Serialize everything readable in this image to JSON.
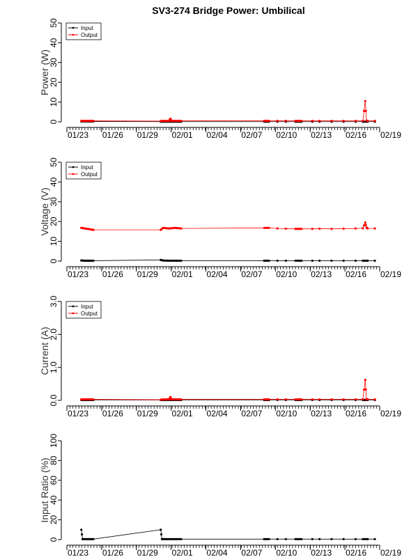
{
  "title": "SV3-274 Bridge Power: Umbilical",
  "colors": {
    "input": "#000000",
    "output": "#ff0000"
  },
  "x_ticks": [
    "01/23",
    "01/26",
    "01/29",
    "02/01",
    "02/04",
    "02/07",
    "02/10",
    "02/13",
    "02/16",
    "02/19"
  ],
  "chart_data": [
    {
      "type": "line",
      "ylabel": "Power (W)",
      "ylim": [
        0,
        50
      ],
      "yticks": [
        0,
        10,
        20,
        30,
        40,
        50
      ],
      "xlim": [
        23.0,
        49.0
      ],
      "legend": {
        "placement": "top-left",
        "entries": [
          "Input",
          "Output"
        ]
      },
      "series": [
        {
          "name": "Input",
          "x": [
            24.2,
            24.5,
            24.8,
            25.0,
            25.2,
            30.8,
            31.0,
            31.5,
            32.0,
            32.5,
            39.4,
            39.8,
            40.5,
            41.2,
            42.0,
            42.5,
            43.4,
            44.0,
            45.0,
            46.0,
            47.0,
            47.6,
            48.0,
            48.6
          ],
          "y": [
            0.2,
            0.2,
            0.2,
            0.2,
            0.2,
            0.1,
            0.1,
            0.1,
            0.1,
            0.1,
            0.1,
            0.1,
            0.1,
            0.1,
            0.1,
            0.1,
            0.1,
            0.1,
            0.1,
            0.1,
            0.1,
            0.1,
            0.1,
            0.1
          ]
        },
        {
          "name": "Output",
          "x": [
            24.2,
            24.5,
            24.8,
            25.0,
            25.2,
            30.8,
            31.0,
            31.5,
            31.6,
            31.7,
            32.0,
            32.5,
            39.4,
            39.8,
            40.5,
            41.2,
            42.0,
            42.5,
            43.4,
            44.0,
            45.0,
            46.0,
            47.0,
            47.6,
            47.8,
            47.9,
            48.0,
            48.6
          ],
          "y": [
            0.5,
            0.5,
            0.5,
            0.5,
            0.5,
            0.4,
            0.5,
            0.5,
            1.6,
            0.5,
            0.5,
            0.5,
            0.5,
            0.5,
            0.5,
            0.5,
            0.5,
            0.5,
            0.5,
            0.5,
            0.5,
            0.5,
            0.5,
            0.5,
            10.5,
            0.6,
            0.5,
            0.5
          ]
        }
      ]
    },
    {
      "type": "line",
      "ylabel": "Voltage (V)",
      "ylim": [
        0,
        50
      ],
      "yticks": [
        0,
        10,
        20,
        30,
        40,
        50
      ],
      "xlim": [
        23.0,
        49.0
      ],
      "legend": {
        "placement": "top-left",
        "entries": [
          "Input",
          "Output"
        ]
      },
      "series": [
        {
          "name": "Input",
          "x": [
            24.2,
            24.5,
            24.8,
            25.0,
            25.2,
            30.8,
            31.0,
            31.5,
            32.0,
            32.5,
            39.4,
            39.8,
            40.5,
            41.2,
            42.0,
            42.5,
            43.4,
            44.0,
            45.0,
            46.0,
            47.0,
            47.6,
            48.0,
            48.6
          ],
          "y": [
            0.3,
            0.2,
            0.2,
            0.2,
            0.2,
            0.6,
            0.3,
            0.2,
            0.2,
            0.2,
            0.2,
            0.2,
            0.2,
            0.2,
            0.2,
            0.2,
            0.2,
            0.2,
            0.2,
            0.2,
            0.2,
            0.2,
            0.2,
            0.2
          ]
        },
        {
          "name": "Output",
          "x": [
            24.2,
            24.5,
            24.8,
            25.0,
            25.2,
            30.8,
            31.0,
            31.5,
            32.0,
            32.5,
            39.4,
            39.8,
            40.5,
            41.2,
            42.0,
            42.5,
            43.4,
            44.0,
            45.0,
            46.0,
            47.0,
            47.6,
            47.8,
            47.9,
            48.0,
            48.6
          ],
          "y": [
            16.8,
            16.5,
            16.2,
            16.0,
            15.8,
            15.8,
            16.8,
            16.5,
            16.8,
            16.5,
            16.8,
            16.8,
            16.5,
            16.4,
            16.3,
            16.3,
            16.3,
            16.4,
            16.3,
            16.4,
            16.5,
            16.6,
            19.5,
            17.0,
            16.5,
            16.5
          ]
        }
      ]
    },
    {
      "type": "line",
      "ylabel": "Current (A)",
      "ylim": [
        0,
        3
      ],
      "yticks": [
        0.0,
        1.0,
        2.0,
        3.0
      ],
      "ytick_labels": [
        "0.0",
        "1.0",
        "2.0",
        "3.0"
      ],
      "xlim": [
        23.0,
        49.0
      ],
      "legend": {
        "placement": "top-left",
        "entries": [
          "Input",
          "Output"
        ]
      },
      "series": [
        {
          "name": "Input",
          "x": [
            24.2,
            24.5,
            24.8,
            25.0,
            25.2,
            30.8,
            31.0,
            31.5,
            32.0,
            32.5,
            39.4,
            39.8,
            40.5,
            41.2,
            42.0,
            42.5,
            43.4,
            44.0,
            45.0,
            46.0,
            47.0,
            47.6,
            48.0,
            48.6
          ],
          "y": [
            0.01,
            0.01,
            0.01,
            0.01,
            0.01,
            0.01,
            0.01,
            0.01,
            0.01,
            0.01,
            0.01,
            0.01,
            0.01,
            0.01,
            0.01,
            0.01,
            0.01,
            0.01,
            0.01,
            0.01,
            0.01,
            0.01,
            0.01,
            0.01
          ]
        },
        {
          "name": "Output",
          "x": [
            24.2,
            24.5,
            24.8,
            25.0,
            25.2,
            30.8,
            31.0,
            31.5,
            31.6,
            31.7,
            32.0,
            32.5,
            39.4,
            39.8,
            40.5,
            41.2,
            42.0,
            42.5,
            43.4,
            44.0,
            45.0,
            46.0,
            47.0,
            47.6,
            47.8,
            47.9,
            48.0,
            48.6
          ],
          "y": [
            0.03,
            0.03,
            0.03,
            0.03,
            0.03,
            0.02,
            0.03,
            0.03,
            0.1,
            0.03,
            0.03,
            0.03,
            0.03,
            0.03,
            0.03,
            0.03,
            0.03,
            0.03,
            0.03,
            0.03,
            0.03,
            0.03,
            0.03,
            0.03,
            0.62,
            0.04,
            0.03,
            0.03
          ]
        }
      ]
    },
    {
      "type": "line",
      "ylabel": "Input Ratio (%)",
      "ylim": [
        0,
        100
      ],
      "yticks": [
        0,
        20,
        40,
        60,
        80,
        100
      ],
      "xlim": [
        23.0,
        49.0
      ],
      "series": [
        {
          "name": "",
          "x": [
            24.2,
            24.3,
            24.5,
            24.8,
            25.0,
            25.2,
            30.8,
            30.9,
            31.2,
            31.5,
            32.0,
            32.5,
            39.4,
            39.8,
            40.5,
            41.2,
            42.0,
            42.5,
            43.4,
            44.0,
            45.0,
            46.0,
            47.0,
            47.6,
            48.0,
            48.6
          ],
          "y": [
            10,
            0.5,
            0.5,
            0.5,
            0.5,
            0.5,
            10,
            0.5,
            0.5,
            0.5,
            0.5,
            0.5,
            0.5,
            0.5,
            0.5,
            0.5,
            0.5,
            0.5,
            0.5,
            0.5,
            0.5,
            0.5,
            0.5,
            0.5,
            0.5,
            0.5
          ]
        }
      ]
    }
  ]
}
